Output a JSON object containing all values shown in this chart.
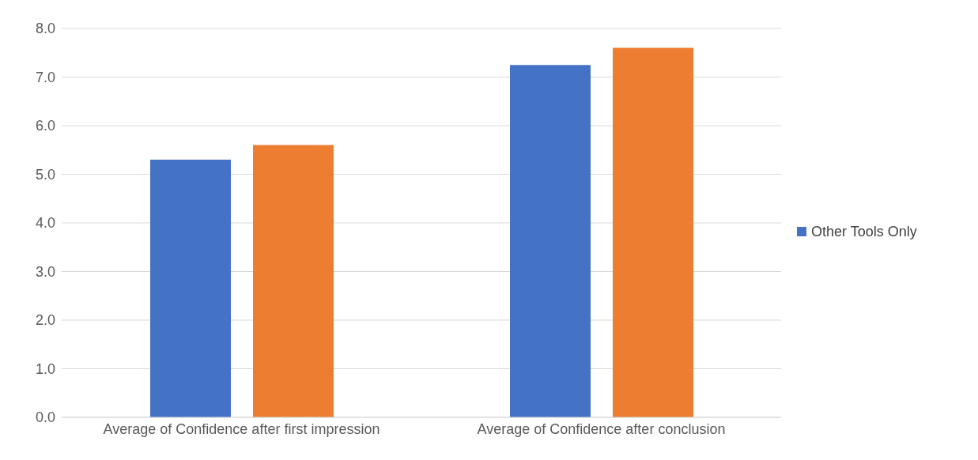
{
  "chart_data": {
    "type": "bar",
    "categories": [
      "Average of Confidence after first impression",
      "Average of Confidence after conclusion"
    ],
    "series": [
      {
        "name": "Other Tools Only",
        "color": "#4472c4",
        "values": [
          5.3,
          7.25
        ]
      },
      {
        "color": "#ed7d31",
        "values": [
          5.6,
          7.6
        ]
      }
    ],
    "ylim": [
      0,
      8
    ],
    "yticks": [
      {
        "value": 0,
        "label": "0.0"
      },
      {
        "value": 1,
        "label": "1.0"
      },
      {
        "value": 2,
        "label": "2.0"
      },
      {
        "value": 3,
        "label": "3.0"
      },
      {
        "value": 4,
        "label": "4.0"
      },
      {
        "value": 5,
        "label": "5.0"
      },
      {
        "value": 6,
        "label": "6.0"
      },
      {
        "value": 7,
        "label": "7.0"
      },
      {
        "value": 8,
        "label": "8.0"
      }
    ],
    "grid": "y",
    "legend": "right"
  }
}
